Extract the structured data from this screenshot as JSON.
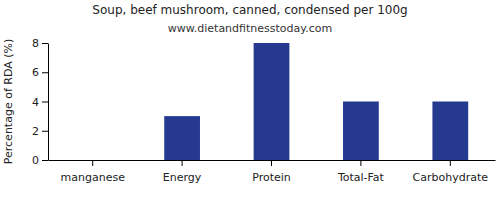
{
  "chart_data": {
    "type": "bar",
    "title": "Soup, beef mushroom, canned, condensed per 100g",
    "subtitle": "www.dietandfitnesstoday.com",
    "y_label": "Percentage of RDA (%)",
    "categories": [
      "manganese",
      "Energy",
      "Protein",
      "Total-Fat",
      "Carbohydrate"
    ],
    "values": [
      0,
      3,
      8,
      4,
      4
    ],
    "color": "#253a8e",
    "ylim": [
      0,
      8
    ],
    "yticks": [
      0,
      2,
      4,
      6,
      8
    ],
    "grid": false
  }
}
